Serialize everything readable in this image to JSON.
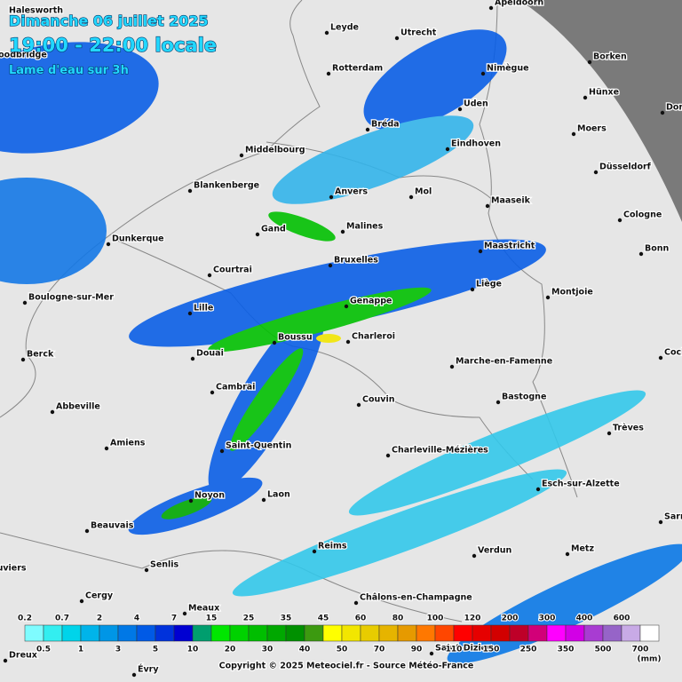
{
  "header": {
    "title": "Dimanche 06 juillet 2025",
    "period": "19:00 - 22:00 locale",
    "subtitle": "Lame d'eau sur 3h"
  },
  "cities": [
    "Halesworth",
    "Woodbridge",
    "Apeldoorn",
    "Leyde",
    "Utrecht",
    "Borken",
    "Rotterdam",
    "Nimègue",
    "Hünxe",
    "Uden",
    "Dorsten",
    "Bréda",
    "Moers",
    "Eindhoven",
    "Middelbourg",
    "Düsseldorf",
    "Blankenberge",
    "Anvers",
    "Mol",
    "Maaseik",
    "Cologne",
    "Gand",
    "Malines",
    "Dunkerque",
    "Maastricht",
    "Bonn",
    "Bruxelles",
    "Courtrai",
    "Boulogne-sur-Mer",
    "Liège",
    "Montjoie",
    "Genappe",
    "Lille",
    "Boussu",
    "Charleroi",
    "Berck",
    "Douai",
    "Marche-en-Famenne",
    "Cochem",
    "Cambrai",
    "Bastogne",
    "Couvin",
    "Abbeville",
    "Trèves",
    "Amiens",
    "Saint-Quentin",
    "Charleville-Mézières",
    "Esch-sur-Alzette",
    "Noyon",
    "Laon",
    "Sarrebruck",
    "Beauvais",
    "Reims",
    "Verdun",
    "Metz",
    "Senlis",
    "Louviers",
    "Cergy",
    "Châlons-en-Champagne",
    "Meaux",
    "Saint-Dizier",
    "Dreux",
    "Évry"
  ],
  "legend": {
    "thresholds": [
      0.2,
      0.5,
      0.7,
      1,
      2,
      3,
      4,
      5,
      7,
      10,
      15,
      20,
      25,
      30,
      35,
      40,
      45,
      50,
      60,
      70,
      80,
      90,
      100,
      110,
      120,
      150,
      200,
      250,
      300,
      350,
      400,
      500,
      600,
      700
    ],
    "colors": [
      "#7ffcff",
      "#33eef0",
      "#00d4ea",
      "#00b4ea",
      "#0096e6",
      "#0078e6",
      "#005ae6",
      "#0032dc",
      "#0000d2",
      "#009e6e",
      "#00e600",
      "#00d200",
      "#00be00",
      "#00a800",
      "#009000",
      "#3c9a10",
      "#ffff00",
      "#f2e600",
      "#e8cc00",
      "#e6b400",
      "#e69a00",
      "#ff7800",
      "#ff4600",
      "#ff0000",
      "#e60000",
      "#d20000",
      "#be0028",
      "#d20078",
      "#ff00ff",
      "#d200e6",
      "#a83cd2",
      "#9664c8",
      "#c8aae6",
      "#ffffff"
    ],
    "unit": "(mm)"
  },
  "footer": "Copyright © 2025  Meteociel.fr  -  Source Météo-France"
}
